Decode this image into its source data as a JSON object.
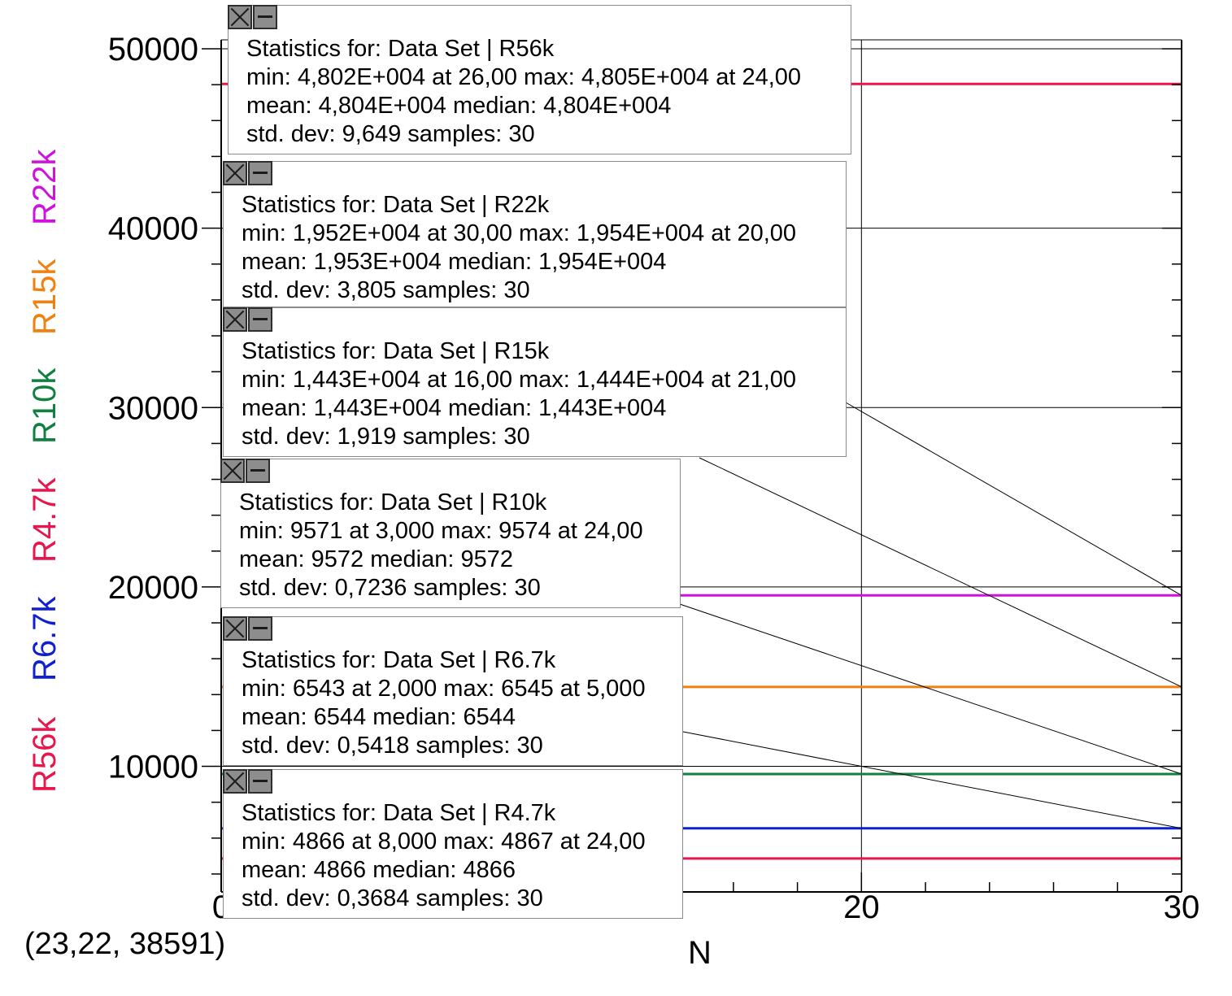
{
  "chart_data": {
    "type": "line",
    "xlabel": "N",
    "ylim": [
      3000,
      50500
    ],
    "xlim": [
      0,
      30
    ],
    "y_ticks": [
      "10000",
      "20000",
      "30000",
      "40000",
      "50000"
    ],
    "y_tick_values": [
      10000,
      20000,
      30000,
      40000,
      50000
    ],
    "x_ticks": [
      "0",
      "20",
      "30"
    ],
    "x_tick_values": [
      0,
      20,
      30
    ],
    "grid": true,
    "legend_placement": "left, vertical",
    "series": [
      {
        "name": "R56k",
        "color": "#e8164c",
        "x": [
          0,
          30
        ],
        "values": [
          48040,
          48040
        ]
      },
      {
        "name": "R6.7k",
        "color": "#1020d0",
        "x": [
          0,
          30
        ],
        "values": [
          6544,
          6544
        ]
      },
      {
        "name": "R4.7k",
        "color": "#e8164c",
        "x": [
          0,
          30
        ],
        "values": [
          4866,
          4866
        ]
      },
      {
        "name": "R10k",
        "color": "#108040",
        "x": [
          0,
          30
        ],
        "values": [
          9572,
          9572
        ]
      },
      {
        "name": "R15k",
        "color": "#f08010",
        "x": [
          0,
          30
        ],
        "values": [
          14430,
          14430
        ]
      },
      {
        "name": "R22k",
        "color": "#d010e0",
        "x": [
          0,
          30
        ],
        "values": [
          19530,
          19530
        ]
      }
    ]
  },
  "coordinate_readout": "(23,22, 38591)",
  "stat_boxes": [
    {
      "series": "R56k",
      "lines": [
        "Statistics for: Data Set | R56k",
        "min: 4,802E+004 at 26,00 max: 4,805E+004 at 24,00",
        "mean: 4,804E+004 median: 4,804E+004",
        "std. dev: 9,649 samples: 30"
      ]
    },
    {
      "series": "R22k",
      "lines": [
        "Statistics for: Data Set | R22k",
        "min: 1,952E+004 at 30,00 max: 1,954E+004 at 20,00",
        "mean: 1,953E+004 median: 1,954E+004",
        "std. dev: 3,805 samples: 30"
      ]
    },
    {
      "series": "R15k",
      "lines": [
        "Statistics for: Data Set | R15k",
        "min: 1,443E+004 at 16,00 max: 1,444E+004 at 21,00",
        "mean: 1,443E+004 median: 1,443E+004",
        "std. dev: 1,919 samples: 30"
      ]
    },
    {
      "series": "R10k",
      "lines": [
        "Statistics for: Data Set | R10k",
        "min: 9571 at 3,000 max: 9574 at 24,00",
        "mean: 9572 median: 9572",
        "std. dev: 0,7236 samples: 30"
      ]
    },
    {
      "series": "R6.7k",
      "lines": [
        "Statistics for: Data Set | R6.7k",
        "min: 6543 at 2,000 max: 6545 at 5,000",
        "mean: 6544 median: 6544",
        "std. dev: 0,5418 samples: 30"
      ]
    },
    {
      "series": "R4.7k",
      "lines": [
        "Statistics for: Data Set | R4.7k",
        "min: 4866 at 8,000 max: 4867 at 24,00",
        "mean: 4866 median: 4866",
        "std. dev: 0,3684 samples: 30"
      ]
    }
  ]
}
